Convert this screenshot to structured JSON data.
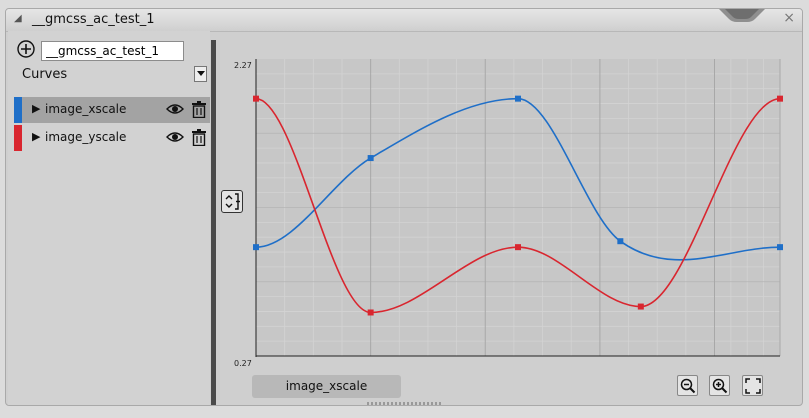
{
  "window": {
    "title": "__gmcss_ac_test_1"
  },
  "sidebar": {
    "name_value": "__gmcss_ac_test_1",
    "mode_label": "Curves",
    "curves": [
      {
        "label": "image_xscale",
        "color": "#1f6fc8",
        "selected": true
      },
      {
        "label": "image_yscale",
        "color": "#d9262f",
        "selected": false
      }
    ]
  },
  "chart_data": {
    "type": "line",
    "ylim": [
      0.27,
      2.27
    ],
    "y_tick_labels": [
      "2.27",
      "0.27"
    ],
    "grid": true,
    "x_keys": [
      0,
      0.2188,
      0.4375,
      0.6563,
      0.875,
      1
    ],
    "series": [
      {
        "name": "image_xscale",
        "color": "#1f6fc8",
        "keys": [
          [
            0,
            1.003
          ],
          [
            0.2188,
            1.603
          ],
          [
            0.5,
            2.003
          ],
          [
            0.6953,
            1.043
          ],
          [
            1,
            1.003
          ]
        ]
      },
      {
        "name": "image_yscale",
        "color": "#d9262f",
        "keys": [
          [
            0,
            2.003
          ],
          [
            0.2188,
            0.563
          ],
          [
            0.5,
            1.003
          ],
          [
            0.7344,
            0.603
          ],
          [
            1,
            2.003
          ]
        ]
      }
    ]
  },
  "bottom": {
    "active_curve_label": "image_xscale"
  },
  "icons": [
    "add-icon",
    "dropdown-arrow-icon",
    "expand-arrow-icon",
    "eye-icon",
    "trash-icon",
    "fit-vertical-icon",
    "zoom-out-icon",
    "zoom-in-icon",
    "fit-all-icon"
  ]
}
